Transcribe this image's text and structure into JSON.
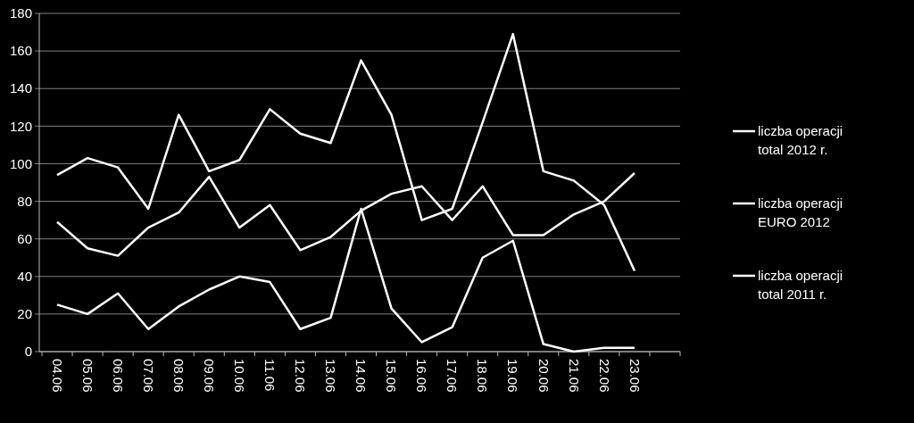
{
  "chart_data": {
    "type": "line",
    "categories": [
      "04.06",
      "05.06",
      "06.06",
      "07.06",
      "08.06",
      "09.06",
      "10.06",
      "11.06",
      "12.06",
      "13.06",
      "14.06",
      "15.06",
      "16.06",
      "17.06",
      "18.06",
      "19.06",
      "20.06",
      "21.06",
      "22.06",
      "23.06",
      null
    ],
    "series": [
      {
        "name": "liczba operacji total 2012 r.",
        "color": "#ffffff",
        "values": [
          94,
          103,
          98,
          76,
          126,
          96,
          102,
          129,
          116,
          111,
          155,
          126,
          70,
          76,
          122,
          169,
          96,
          91,
          78,
          43,
          null
        ]
      },
      {
        "name": "liczba operacji EURO 2012",
        "color": "#ffffff",
        "values": [
          25,
          20,
          31,
          12,
          24,
          33,
          40,
          37,
          12,
          18,
          76,
          23,
          5,
          13,
          50,
          59,
          4,
          0,
          2,
          2,
          null
        ]
      },
      {
        "name": "liczba operacji total 2011 r.",
        "color": "#ffffff",
        "values": [
          69,
          55,
          51,
          66,
          74,
          93,
          66,
          78,
          54,
          61,
          75,
          84,
          88,
          70,
          88,
          62,
          62,
          73,
          80,
          95,
          null
        ]
      }
    ],
    "ylim": [
      0,
      180
    ],
    "yticks": [
      0,
      20,
      40,
      60,
      80,
      100,
      120,
      140,
      160,
      180
    ],
    "grid": "y",
    "legend": "right",
    "marker": "none",
    "line_style": "solid"
  }
}
